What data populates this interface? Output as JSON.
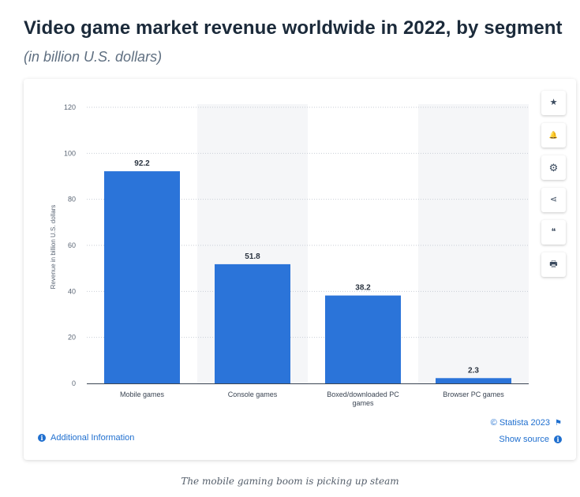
{
  "header": {
    "title": "Video game market revenue worldwide in 2022, by segment",
    "subtitle": "(in billion U.S. dollars)"
  },
  "chart_data": {
    "type": "bar",
    "categories": [
      "Mobile games",
      "Console games",
      "Boxed/downloaded PC games",
      "Browser PC games"
    ],
    "category_lines": [
      [
        "Mobile games"
      ],
      [
        "Console games"
      ],
      [
        "Boxed/downloaded PC",
        "games"
      ],
      [
        "Browser PC games"
      ]
    ],
    "values": [
      92.2,
      51.8,
      38.2,
      2.3
    ],
    "value_labels": [
      "92.2",
      "51.8",
      "38.2",
      "2.3"
    ],
    "ylabel": "Revenue in billion U.S. dollars",
    "xlabel": "",
    "ylim": [
      0,
      120
    ],
    "yticks": [
      0,
      20,
      40,
      60,
      80,
      100,
      120
    ],
    "grid": true,
    "bar_color": "#2b74d9"
  },
  "toolbar": {
    "items": [
      {
        "name": "star-icon",
        "glyph": "★"
      },
      {
        "name": "bell-icon",
        "glyph": "🔔"
      },
      {
        "name": "gear-icon",
        "glyph": "⚙"
      },
      {
        "name": "share-icon",
        "glyph": "⋖"
      },
      {
        "name": "quote-icon",
        "glyph": "❝"
      },
      {
        "name": "print-icon",
        "glyph": "🖶"
      }
    ]
  },
  "footer": {
    "additional_info": "Additional Information",
    "credits": "© Statista 2023",
    "show_source": "Show source",
    "info_glyph": "i",
    "flag_glyph": "⚑"
  },
  "caption": "The mobile gaming boom is picking up steam"
}
